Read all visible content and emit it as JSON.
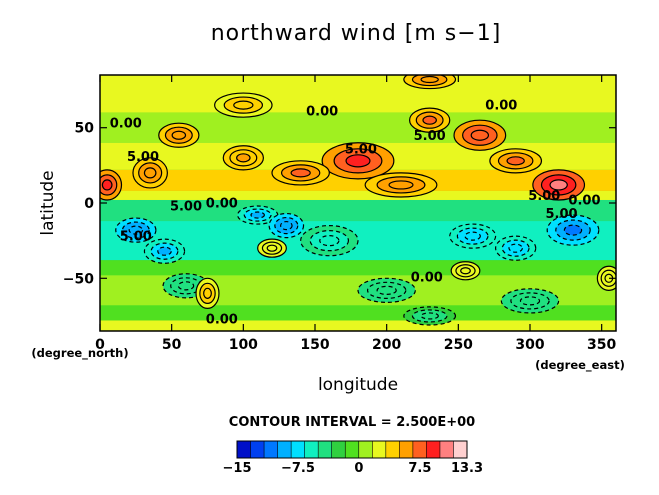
{
  "chart_data": {
    "type": "heatmap",
    "title": "northward wind [m s−1]",
    "xlabel": "longitude",
    "ylabel": "latitude",
    "x_unit": "(degree_east)",
    "y_unit": "(degree_north)",
    "xlim": [
      0,
      360
    ],
    "ylim": [
      -85,
      85
    ],
    "x_ticks": [
      "0",
      "50",
      "100",
      "150",
      "200",
      "250",
      "300",
      "350"
    ],
    "y_ticks": [
      "50",
      "0",
      "−50"
    ],
    "contour_interval_text": "CONTOUR INTERVAL = 2.500E+00",
    "colorbar": {
      "min": -15,
      "max": 13.3,
      "tick_labels": [
        "−15",
        "−7.5",
        "0",
        "7.5",
        "13.3"
      ],
      "tick_values": [
        -15,
        -7.5,
        0,
        7.5,
        13.3
      ],
      "colors": [
        "#0010c8",
        "#0040f0",
        "#0078ff",
        "#00b0ff",
        "#00e0ff",
        "#10f0c0",
        "#20e080",
        "#30d040",
        "#50e020",
        "#a0f020",
        "#e8f820",
        "#ffd000",
        "#ffa000",
        "#ff6020",
        "#ff2020",
        "#ff8080",
        "#ffd0d0"
      ]
    },
    "contour_labels": [
      {
        "text": "0.00",
        "lon": 18,
        "lat": 50
      },
      {
        "text": "5.00",
        "lon": 30,
        "lat": 28
      },
      {
        "text": "5.00",
        "lon": 182,
        "lat": 33
      },
      {
        "text": "0.00",
        "lon": 155,
        "lat": 58
      },
      {
        "text": "5.00",
        "lon": 230,
        "lat": 42
      },
      {
        "text": "0.00",
        "lon": 280,
        "lat": 62
      },
      {
        "text": "5.00",
        "lon": 60,
        "lat": -5
      },
      {
        "text": "0.00",
        "lon": 85,
        "lat": -3
      },
      {
        "text": "5.00",
        "lon": 25,
        "lat": -25
      },
      {
        "text": "5.00",
        "lon": 310,
        "lat": 2
      },
      {
        "text": "0.00",
        "lon": 338,
        "lat": -1
      },
      {
        "text": "5.00",
        "lon": 322,
        "lat": -10
      },
      {
        "text": "0.00",
        "lon": 228,
        "lat": -52
      },
      {
        "text": "0.00",
        "lon": 85,
        "lat": -80
      }
    ],
    "features": [
      {
        "v": -10,
        "lon": 25,
        "lat": -18,
        "rx": 14,
        "ry": 8
      },
      {
        "v": -9,
        "lon": 45,
        "lat": -32,
        "rx": 14,
        "ry": 8
      },
      {
        "v": -9,
        "lon": 110,
        "lat": -8,
        "rx": 14,
        "ry": 6
      },
      {
        "v": -10,
        "lon": 130,
        "lat": -15,
        "rx": 12,
        "ry": 8
      },
      {
        "v": -8,
        "lon": 260,
        "lat": -22,
        "rx": 16,
        "ry": 8
      },
      {
        "v": -11,
        "lon": 330,
        "lat": -18,
        "rx": 18,
        "ry": 10
      },
      {
        "v": -8,
        "lon": 290,
        "lat": -30,
        "rx": 14,
        "ry": 8
      },
      {
        "v": -6,
        "lon": 160,
        "lat": -25,
        "rx": 20,
        "ry": 10
      },
      {
        "v": -5,
        "lon": 60,
        "lat": -55,
        "rx": 16,
        "ry": 8
      },
      {
        "v": -5,
        "lon": 200,
        "lat": -58,
        "rx": 20,
        "ry": 8
      },
      {
        "v": -5,
        "lon": 300,
        "lat": -65,
        "rx": 20,
        "ry": 8
      },
      {
        "v": -4,
        "lon": 230,
        "lat": -75,
        "rx": 18,
        "ry": 6
      },
      {
        "v": 9,
        "lon": 5,
        "lat": 12,
        "rx": 10,
        "ry": 10
      },
      {
        "v": 10,
        "lon": 320,
        "lat": 12,
        "rx": 18,
        "ry": 10
      },
      {
        "v": 9,
        "lon": 180,
        "lat": 28,
        "rx": 25,
        "ry": 12
      },
      {
        "v": 7,
        "lon": 140,
        "lat": 20,
        "rx": 20,
        "ry": 8
      },
      {
        "v": 6,
        "lon": 210,
        "lat": 12,
        "rx": 25,
        "ry": 8
      },
      {
        "v": 8,
        "lon": 265,
        "lat": 45,
        "rx": 18,
        "ry": 10
      },
      {
        "v": 7,
        "lon": 230,
        "lat": 55,
        "rx": 14,
        "ry": 8
      },
      {
        "v": 6,
        "lon": 55,
        "lat": 45,
        "rx": 14,
        "ry": 8
      },
      {
        "v": 6,
        "lon": 35,
        "lat": 20,
        "rx": 12,
        "ry": 10
      },
      {
        "v": 7,
        "lon": 290,
        "lat": 28,
        "rx": 18,
        "ry": 8
      },
      {
        "v": 5,
        "lon": 100,
        "lat": 30,
        "rx": 14,
        "ry": 8
      },
      {
        "v": 6,
        "lon": 230,
        "lat": 82,
        "rx": 18,
        "ry": 6
      },
      {
        "v": 4,
        "lon": 100,
        "lat": 65,
        "rx": 20,
        "ry": 8
      },
      {
        "v": 3,
        "lon": 120,
        "lat": -30,
        "rx": 10,
        "ry": 6
      },
      {
        "v": 4,
        "lon": 75,
        "lat": -60,
        "rx": 8,
        "ry": 10
      },
      {
        "v": 3,
        "lon": 255,
        "lat": -45,
        "rx": 10,
        "ry": 6
      },
      {
        "v": 3,
        "lon": 355,
        "lat": -50,
        "rx": 8,
        "ry": 8
      }
    ]
  }
}
